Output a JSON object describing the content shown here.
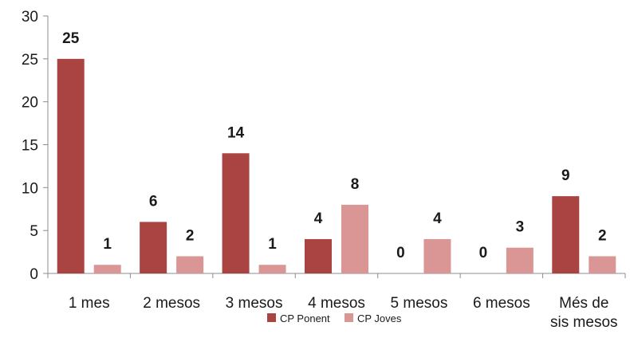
{
  "chart_data": {
    "type": "bar",
    "categories": [
      "1 mes",
      "2 mesos",
      "3 mesos",
      "4 mesos",
      "5 mesos",
      "6 mesos",
      "Més de sis mesos"
    ],
    "category_lines": [
      [
        "1 mes"
      ],
      [
        "2 mesos"
      ],
      [
        "3 mesos"
      ],
      [
        "4 mesos"
      ],
      [
        "5 mesos"
      ],
      [
        "6 mesos"
      ],
      [
        "Més de",
        "sis mesos"
      ]
    ],
    "series": [
      {
        "name": "CP Ponent",
        "values": [
          25,
          6,
          14,
          4,
          0,
          0,
          9
        ],
        "color": "#a94442"
      },
      {
        "name": "CP Joves",
        "values": [
          1,
          2,
          1,
          8,
          4,
          3,
          2
        ],
        "color": "#d99694"
      }
    ],
    "yticks": [
      0,
      5,
      10,
      15,
      20,
      25,
      30
    ],
    "ylim": [
      0,
      30
    ],
    "title": "",
    "xlabel": "",
    "ylabel": "",
    "grid": false,
    "legend_position": "bottom-center",
    "data_labels": true
  }
}
